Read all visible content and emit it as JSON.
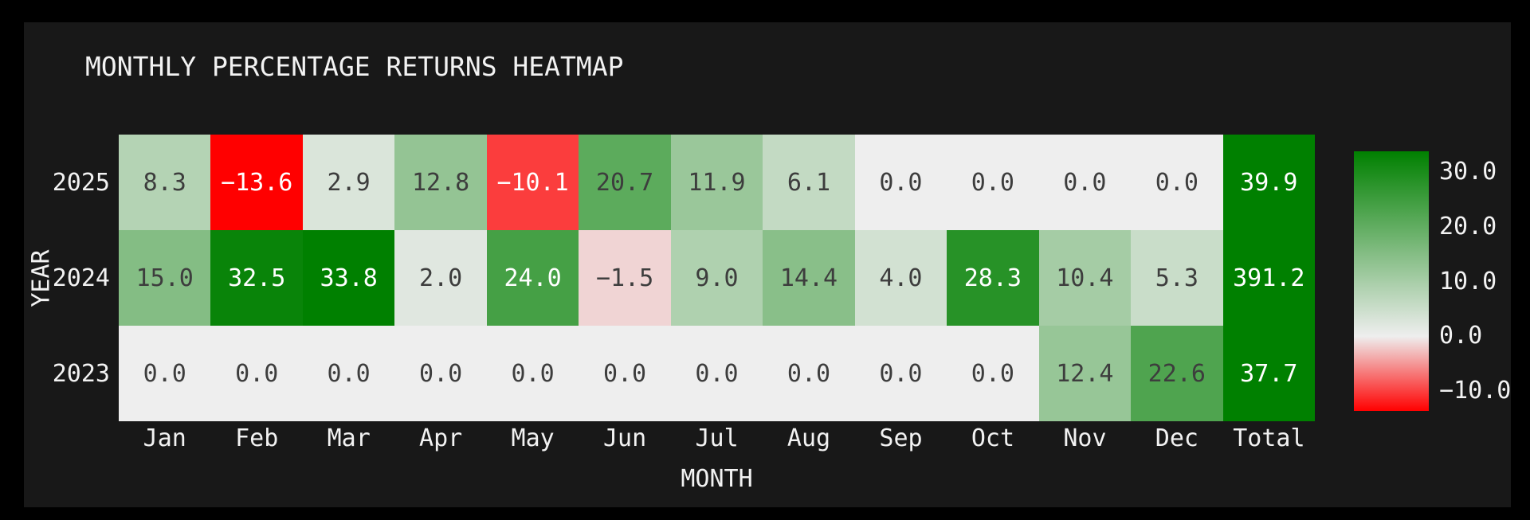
{
  "figure": {
    "background": "#181818",
    "frame_color": "#000000",
    "text_color": "#f2f2f2",
    "annotation_dark_color": "#3d3d3d",
    "annotation_light_color": "#ffffff"
  },
  "chart_data": {
    "type": "heatmap",
    "title": "MONTHLY PERCENTAGE RETURNS HEATMAP",
    "xlabel": "MONTH",
    "ylabel": "YEAR",
    "categories": [
      "Jan",
      "Feb",
      "Mar",
      "Apr",
      "May",
      "Jun",
      "Jul",
      "Aug",
      "Sep",
      "Oct",
      "Nov",
      "Dec",
      "Total"
    ],
    "rows": [
      "2025",
      "2024",
      "2023"
    ],
    "values": [
      [
        8.3,
        -13.6,
        2.9,
        12.8,
        -10.1,
        20.7,
        11.9,
        6.1,
        0.0,
        0.0,
        0.0,
        0.0,
        39.9
      ],
      [
        15.0,
        32.5,
        33.8,
        2.0,
        24.0,
        -1.5,
        9.0,
        14.4,
        4.0,
        28.3,
        10.4,
        5.3,
        391.2
      ],
      [
        0.0,
        0.0,
        0.0,
        0.0,
        0.0,
        0.0,
        0.0,
        0.0,
        0.0,
        0.0,
        12.4,
        22.6,
        37.7
      ]
    ],
    "value_decimals": 1,
    "grid": false,
    "legend_position": "right-colorbar",
    "colorbar": {
      "ticks": [
        30.0,
        20.0,
        10.0,
        0.0,
        -10.0
      ],
      "vmin": -13.6,
      "vmax": 33.8,
      "color_negative": "#ff0000",
      "color_zero": "#eeeeee",
      "color_positive": "#008000"
    }
  }
}
